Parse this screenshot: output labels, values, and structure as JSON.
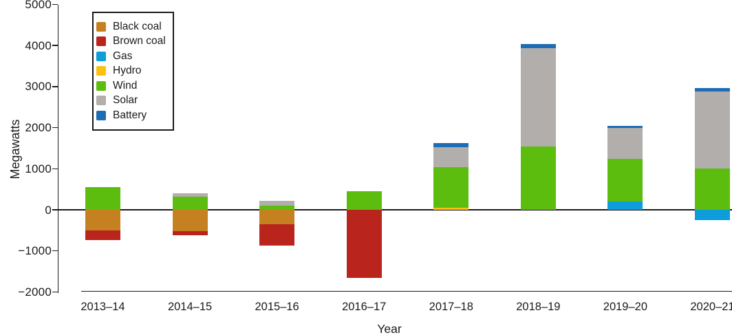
{
  "chart_data": {
    "type": "bar",
    "stacked": true,
    "title": "",
    "xlabel": "Year",
    "ylabel": "Megawatts",
    "ylim": [
      -2000,
      5000
    ],
    "ytick_step": 1000,
    "ytick_labels": [
      "5000",
      "4000",
      "3000",
      "2000",
      "1000",
      "0",
      "−1000",
      "−2000"
    ],
    "grid": false,
    "legend_position": "top-left",
    "background_color": "#ffffff",
    "axis_color": "#1a1a1a",
    "categories": [
      "2013–14",
      "2014–15",
      "2015–16",
      "2016–17",
      "2017–18",
      "2018–19",
      "2019–20",
      "2020–21"
    ],
    "series": [
      {
        "name": "Black coal",
        "color": "#c5801f",
        "values": [
          -510,
          -520,
          -350,
          0,
          0,
          0,
          0,
          0
        ]
      },
      {
        "name": "Brown coal",
        "color": "#b9251c",
        "values": [
          -230,
          -95,
          -525,
          -1650,
          0,
          0,
          0,
          0
        ]
      },
      {
        "name": "Gas",
        "color": "#0d9ddb",
        "values": [
          0,
          0,
          0,
          0,
          0,
          0,
          195,
          -250
        ]
      },
      {
        "name": "Hydro",
        "color": "#fdc110",
        "values": [
          0,
          0,
          0,
          0,
          55,
          0,
          0,
          0
        ]
      },
      {
        "name": "Wind",
        "color": "#5cbd0f",
        "values": [
          555,
          310,
          100,
          460,
          985,
          1545,
          1045,
          1000
        ]
      },
      {
        "name": "Solar",
        "color": "#b1aeab",
        "values": [
          0,
          100,
          120,
          0,
          490,
          2390,
          755,
          1875
        ]
      },
      {
        "name": "Battery",
        "color": "#1e6cb3",
        "values": [
          0,
          0,
          0,
          0,
          95,
          110,
          45,
          95
        ]
      }
    ]
  }
}
